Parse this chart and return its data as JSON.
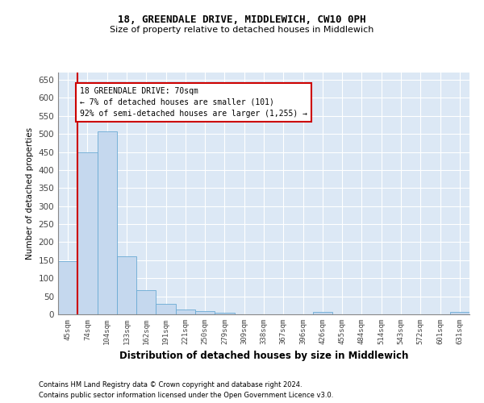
{
  "title1": "18, GREENDALE DRIVE, MIDDLEWICH, CW10 0PH",
  "title2": "Size of property relative to detached houses in Middlewich",
  "xlabel": "Distribution of detached houses by size in Middlewich",
  "ylabel": "Number of detached properties",
  "bar_color": "#c5d8ee",
  "bar_edgecolor": "#6aaad4",
  "vline_color": "#cc0000",
  "annotation_text": "18 GREENDALE DRIVE: 70sqm\n← 7% of detached houses are smaller (101)\n92% of semi-detached houses are larger (1,255) →",
  "annotation_box_color": "#cc0000",
  "categories": [
    "45sqm",
    "74sqm",
    "104sqm",
    "133sqm",
    "162sqm",
    "191sqm",
    "221sqm",
    "250sqm",
    "279sqm",
    "309sqm",
    "338sqm",
    "367sqm",
    "396sqm",
    "426sqm",
    "455sqm",
    "484sqm",
    "514sqm",
    "543sqm",
    "572sqm",
    "601sqm",
    "631sqm"
  ],
  "values": [
    148,
    450,
    507,
    160,
    68,
    30,
    14,
    10,
    5,
    0,
    0,
    0,
    0,
    7,
    0,
    0,
    0,
    0,
    0,
    0,
    7
  ],
  "ylim": [
    0,
    670
  ],
  "yticks": [
    0,
    50,
    100,
    150,
    200,
    250,
    300,
    350,
    400,
    450,
    500,
    550,
    600,
    650
  ],
  "footer1": "Contains HM Land Registry data © Crown copyright and database right 2024.",
  "footer2": "Contains public sector information licensed under the Open Government Licence v3.0.",
  "background_color": "#dce8f5"
}
